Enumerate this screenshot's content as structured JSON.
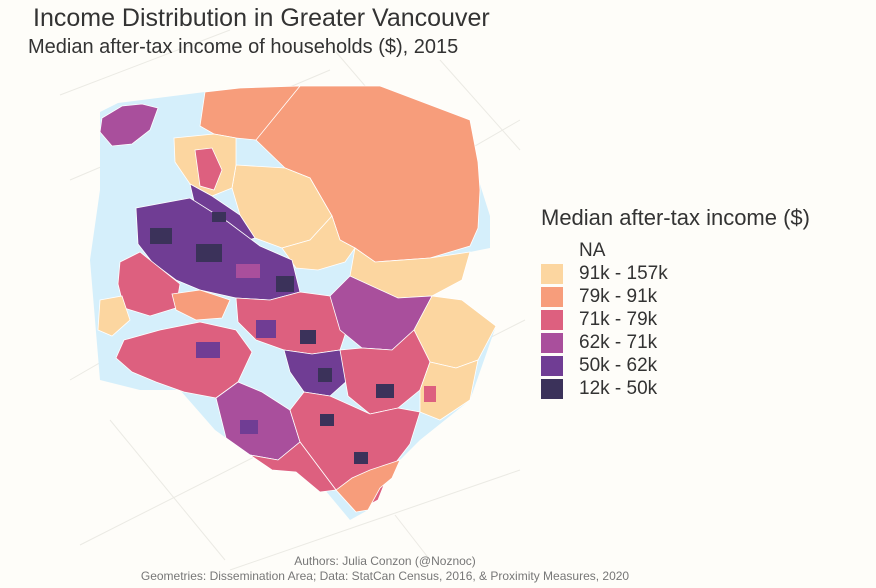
{
  "title": "Income Distribution in Greater Vancouver",
  "subtitle": "Median after-tax income of households ($), 2015",
  "legend": {
    "title": "Median after-tax income ($)",
    "items": [
      {
        "label": "NA",
        "color": "#fefdf9"
      },
      {
        "label": "91k - 157k",
        "color": "#fcd6a0"
      },
      {
        "label": "79k - 91k",
        "color": "#f79d7b"
      },
      {
        "label": "71k - 79k",
        "color": "#dd607f"
      },
      {
        "label": "62k - 71k",
        "color": "#a94f9c"
      },
      {
        "label": "50k - 62k",
        "color": "#703d94"
      },
      {
        "label": "12k - 50k",
        "color": "#3b325a"
      }
    ]
  },
  "water_color": "#d5effb",
  "caption": {
    "authors": "Authors: Julia Conzon (@Noznoc)",
    "sources": "Geometries: Dissemination Area; Data: StatCan Census, 2016, & Proximity Measures, 2020"
  }
}
